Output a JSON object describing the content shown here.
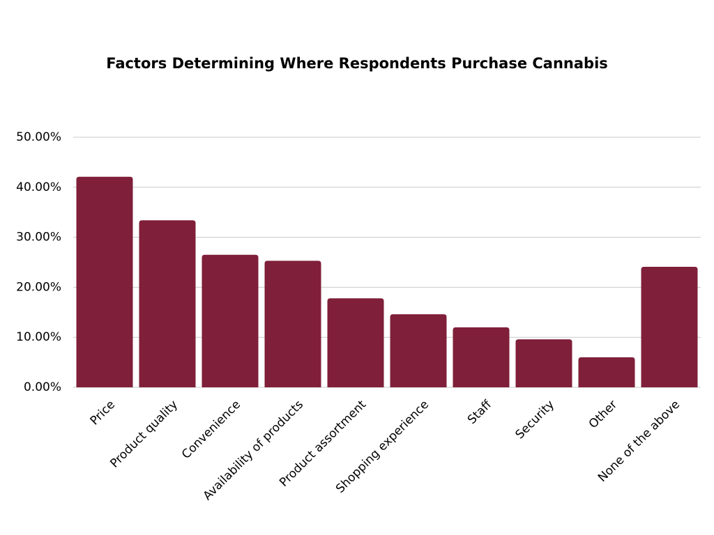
{
  "chart_data": {
    "type": "bar",
    "title": "Factors Determining Where Respondents Purchase Cannabis",
    "categories": [
      "Price",
      "Product quality",
      "Convenience",
      "Availability of products",
      "Product assortment",
      "Shopping experience",
      "Staff",
      "Security",
      "Other",
      "None of the above"
    ],
    "values": [
      42.1,
      33.4,
      26.5,
      25.3,
      17.8,
      14.6,
      12.0,
      9.6,
      6.0,
      24.1
    ],
    "color": "#7f1f3a",
    "ylim": [
      0,
      50
    ],
    "yticks": [
      {
        "value": 0,
        "label": "0.00%"
      },
      {
        "value": 10,
        "label": "10.00%"
      },
      {
        "value": 20,
        "label": "20.00%"
      },
      {
        "value": 30,
        "label": "30.00%"
      },
      {
        "value": 40,
        "label": "40.00%"
      },
      {
        "value": 50,
        "label": "50.00%"
      }
    ],
    "grid": true
  }
}
